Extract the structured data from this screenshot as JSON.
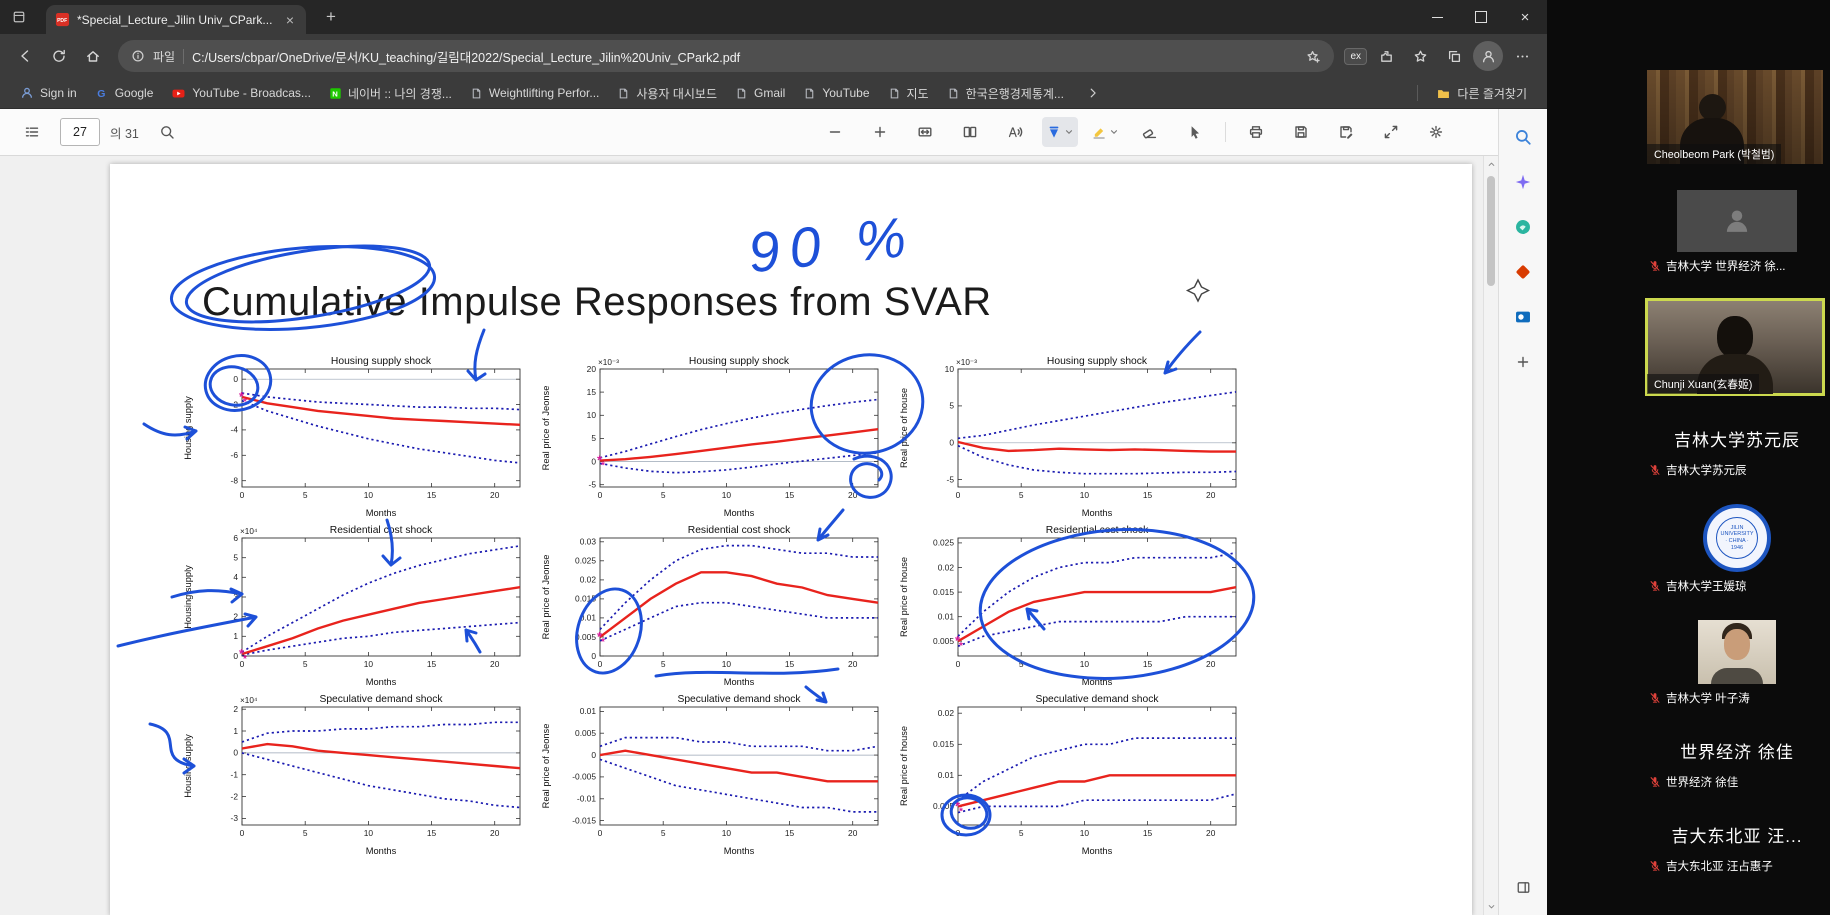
{
  "colors": {
    "pen_blue": "#1d50d8",
    "irf_red": "#e8231d",
    "band_blue": "#1a1ab0",
    "marker_magenta": "#d6199a",
    "active_speaker_border": "#ccd94e",
    "mic_muted_red": "#e0423b"
  },
  "browser": {
    "tab": {
      "title": "*Special_Lecture_Jilin Univ_CPark..."
    },
    "new_tab_button": "+",
    "window_close_glyph": "×",
    "tab_close_glyph": "×",
    "address": {
      "protocol_label": "파일",
      "url": "C:/Users/cbpar/OneDrive/문서/KU_teaching/길림대2022/Special_Lecture_Jilin%20Univ_CPark2.pdf",
      "extension_badge": "ex"
    },
    "bookmarks": [
      {
        "label": "Sign in",
        "icon": "signin"
      },
      {
        "label": "Google",
        "icon": "google"
      },
      {
        "label": "YouTube - Broadcas...",
        "icon": "youtube"
      },
      {
        "label": "네이버 :: 나의 경쟁...",
        "icon": "naver"
      },
      {
        "label": "Weightlifting Perfor...",
        "icon": "page"
      },
      {
        "label": "사용자 대시보드",
        "icon": "page"
      },
      {
        "label": "Gmail",
        "icon": "page"
      },
      {
        "label": "YouTube",
        "icon": "page"
      },
      {
        "label": "지도",
        "icon": "page"
      },
      {
        "label": "한국은행경제통계...",
        "icon": "page"
      }
    ],
    "other_favorites_label": "다른 즐겨찾기",
    "sidebar_icons": [
      "search",
      "copilot",
      "shopping",
      "office",
      "outlook",
      "add"
    ]
  },
  "pdf_toolbar": {
    "page_current": "27",
    "page_total_label": "의 31",
    "tools": [
      "zoom-out",
      "zoom-in",
      "fit-to-width",
      "page-view",
      "read-aloud",
      "draw",
      "highlight",
      "erase",
      "select",
      "print",
      "save",
      "save-as",
      "fullscreen",
      "settings"
    ]
  },
  "slide": {
    "title": "Cumulative Impulse Responses from SVAR",
    "annotation_percent": "90 %"
  },
  "chart_data": {
    "type": "line",
    "x": [
      0,
      2,
      4,
      6,
      8,
      10,
      12,
      14,
      16,
      18,
      20,
      22
    ],
    "xticks": [
      0,
      5,
      10,
      15,
      20
    ],
    "xlabel": "Months",
    "band_note": "red solid = cumulative impulse response, blue dotted = 90% confidence band",
    "subplots": [
      {
        "row": 1,
        "col": 1,
        "title": "Housing supply shock",
        "ylabel": "Housing supply",
        "multiplier": "",
        "ylim": [
          -8.5,
          0.8
        ],
        "yticks": [
          0,
          -2,
          -4,
          -6,
          -8
        ],
        "start_marker": true,
        "mid": [
          -1.4,
          -1.9,
          -2.2,
          -2.5,
          -2.7,
          -2.9,
          -3.1,
          -3.2,
          -3.3,
          -3.4,
          -3.5,
          -3.6
        ],
        "upper": [
          -1.1,
          -1.4,
          -1.6,
          -1.8,
          -1.9,
          -2.0,
          -2.1,
          -2.2,
          -2.2,
          -2.3,
          -2.3,
          -2.4
        ],
        "lower": [
          -1.7,
          -2.5,
          -3.1,
          -3.7,
          -4.2,
          -4.7,
          -5.1,
          -5.5,
          -5.8,
          -6.1,
          -6.4,
          -6.6
        ]
      },
      {
        "row": 1,
        "col": 2,
        "title": "Housing supply shock",
        "ylabel": "Real price of Jeonse",
        "multiplier": "×10⁻³",
        "ylim": [
          -5.5,
          20
        ],
        "yticks": [
          -5,
          0,
          5,
          10,
          15,
          20
        ],
        "start_marker": true,
        "mid": [
          0.2,
          0.5,
          1.0,
          1.6,
          2.3,
          3.0,
          3.7,
          4.3,
          5.0,
          5.6,
          6.3,
          7.0
        ],
        "upper": [
          0.8,
          2.2,
          3.8,
          5.4,
          6.9,
          8.2,
          9.4,
          10.4,
          11.3,
          12.1,
          12.8,
          13.4
        ],
        "lower": [
          -0.4,
          -1.4,
          -2.1,
          -2.4,
          -2.2,
          -1.8,
          -1.2,
          -0.5,
          0.1,
          0.7,
          1.3,
          1.9
        ]
      },
      {
        "row": 1,
        "col": 3,
        "title": "Housing supply shock",
        "ylabel": "Real price of house",
        "multiplier": "×10⁻³",
        "ylim": [
          -6,
          10
        ],
        "yticks": [
          -5,
          0,
          5,
          10
        ],
        "start_marker": false,
        "mid": [
          0.1,
          -0.7,
          -1.1,
          -1.0,
          -0.8,
          -0.9,
          -1.0,
          -0.9,
          -1.0,
          -1.1,
          -1.2,
          -1.2
        ],
        "upper": [
          0.6,
          1.0,
          1.7,
          2.4,
          3.0,
          3.6,
          4.2,
          4.8,
          5.4,
          5.9,
          6.4,
          6.9
        ],
        "lower": [
          -0.4,
          -2.0,
          -3.0,
          -3.7,
          -4.0,
          -4.2,
          -4.2,
          -4.2,
          -4.1,
          -4.0,
          -4.0,
          -3.9
        ]
      },
      {
        "row": 2,
        "col": 1,
        "title": "Residential cost shock",
        "ylabel": "Housing supply",
        "multiplier": "×10⁴",
        "ylim": [
          0,
          6
        ],
        "yticks": [
          0,
          1,
          2,
          3,
          4,
          5,
          6
        ],
        "start_marker": true,
        "mid": [
          0.1,
          0.5,
          0.9,
          1.4,
          1.8,
          2.1,
          2.4,
          2.7,
          2.9,
          3.1,
          3.3,
          3.5
        ],
        "upper": [
          0.2,
          1.0,
          1.7,
          2.4,
          3.1,
          3.7,
          4.2,
          4.6,
          4.9,
          5.2,
          5.4,
          5.6
        ],
        "lower": [
          0.05,
          0.3,
          0.5,
          0.7,
          0.9,
          1.0,
          1.2,
          1.3,
          1.4,
          1.5,
          1.6,
          1.7
        ]
      },
      {
        "row": 2,
        "col": 2,
        "title": "Residential cost shock",
        "ylabel": "Real price of Jeonse",
        "multiplier": "",
        "ylim": [
          0,
          0.031
        ],
        "yticks": [
          0,
          0.005,
          0.01,
          0.015,
          0.02,
          0.025,
          0.03
        ],
        "start_marker": true,
        "mid": [
          0.005,
          0.01,
          0.015,
          0.019,
          0.022,
          0.022,
          0.021,
          0.019,
          0.018,
          0.016,
          0.015,
          0.014
        ],
        "upper": [
          0.007,
          0.014,
          0.02,
          0.025,
          0.028,
          0.029,
          0.029,
          0.028,
          0.027,
          0.027,
          0.026,
          0.026
        ],
        "lower": [
          0.004,
          0.007,
          0.01,
          0.013,
          0.014,
          0.014,
          0.013,
          0.012,
          0.011,
          0.01,
          0.01,
          0.01
        ]
      },
      {
        "row": 2,
        "col": 3,
        "title": "Residential cost shock",
        "ylabel": "Real price of house",
        "multiplier": "",
        "ylim": [
          0.002,
          0.026
        ],
        "yticks": [
          0.005,
          0.01,
          0.015,
          0.02,
          0.025
        ],
        "start_marker": true,
        "mid": [
          0.005,
          0.008,
          0.011,
          0.013,
          0.014,
          0.015,
          0.015,
          0.015,
          0.015,
          0.015,
          0.015,
          0.016
        ],
        "upper": [
          0.006,
          0.011,
          0.015,
          0.018,
          0.02,
          0.021,
          0.021,
          0.022,
          0.022,
          0.022,
          0.022,
          0.023
        ],
        "lower": [
          0.004,
          0.006,
          0.007,
          0.008,
          0.009,
          0.009,
          0.009,
          0.009,
          0.009,
          0.01,
          0.01,
          0.01
        ]
      },
      {
        "row": 3,
        "col": 1,
        "title": "Speculative demand shock",
        "ylabel": "Housing supply",
        "multiplier": "×10⁴",
        "ylim": [
          -3.3,
          2.1
        ],
        "yticks": [
          2,
          1,
          0,
          -1,
          -2,
          -3
        ],
        "start_marker": false,
        "mid": [
          0.2,
          0.4,
          0.3,
          0.1,
          0.0,
          -0.1,
          -0.2,
          -0.3,
          -0.4,
          -0.5,
          -0.6,
          -0.7
        ],
        "upper": [
          0.5,
          0.9,
          1.0,
          1.0,
          1.1,
          1.1,
          1.2,
          1.2,
          1.3,
          1.3,
          1.4,
          1.4
        ],
        "lower": [
          0.0,
          -0.3,
          -0.6,
          -0.9,
          -1.2,
          -1.5,
          -1.7,
          -1.9,
          -2.1,
          -2.2,
          -2.4,
          -2.5
        ]
      },
      {
        "row": 3,
        "col": 2,
        "title": "Speculative demand shock",
        "ylabel": "Real price of Jeonse",
        "multiplier": "",
        "ylim": [
          -0.016,
          0.011
        ],
        "yticks": [
          0.01,
          0.005,
          0,
          -0.005,
          -0.01,
          -0.015
        ],
        "start_marker": false,
        "mid": [
          0.0,
          0.001,
          0.0,
          -0.001,
          -0.002,
          -0.003,
          -0.004,
          -0.004,
          -0.005,
          -0.006,
          -0.006,
          -0.006
        ],
        "upper": [
          0.002,
          0.004,
          0.004,
          0.004,
          0.003,
          0.003,
          0.002,
          0.002,
          0.002,
          0.001,
          0.001,
          0.002
        ],
        "lower": [
          -0.001,
          -0.003,
          -0.005,
          -0.007,
          -0.008,
          -0.009,
          -0.01,
          -0.011,
          -0.012,
          -0.012,
          -0.013,
          -0.013
        ]
      },
      {
        "row": 3,
        "col": 3,
        "title": "Speculative demand shock",
        "ylabel": "Real price of house",
        "multiplier": "",
        "ylim": [
          0.002,
          0.021
        ],
        "yticks": [
          0.005,
          0.01,
          0.015,
          0.02
        ],
        "start_marker": true,
        "mid": [
          0.005,
          0.006,
          0.007,
          0.008,
          0.009,
          0.009,
          0.01,
          0.01,
          0.01,
          0.01,
          0.01,
          0.01
        ],
        "upper": [
          0.006,
          0.009,
          0.011,
          0.013,
          0.014,
          0.015,
          0.015,
          0.016,
          0.016,
          0.016,
          0.016,
          0.016
        ],
        "lower": [
          0.004,
          0.005,
          0.005,
          0.005,
          0.005,
          0.006,
          0.006,
          0.006,
          0.006,
          0.006,
          0.006,
          0.007
        ]
      }
    ]
  },
  "zoom_panel": {
    "participants": [
      {
        "kind": "video",
        "scene": "scene-book",
        "name_label": "Cheolbeom Park (박철범)",
        "muted": false,
        "active": false
      },
      {
        "kind": "avatar",
        "name_label": "吉林大学 世界经济 徐...",
        "muted": true,
        "active": false
      },
      {
        "kind": "video",
        "scene": "scene-room",
        "name_label": "Chunji Xuan(玄春姬)",
        "muted": false,
        "active": true
      },
      {
        "kind": "text",
        "display_text": "吉林大学苏元辰",
        "name_label": "吉林大学苏元辰",
        "muted": true,
        "active": false
      },
      {
        "kind": "logo",
        "logo_text": "JILIN UNIVERSITY · CHINA · 1946",
        "name_label": "吉林大学王媛琼",
        "muted": true,
        "active": false
      },
      {
        "kind": "photo",
        "name_label": "吉林大学 叶子涛",
        "muted": true,
        "active": false
      },
      {
        "kind": "text",
        "display_text": "世界经济 徐佳",
        "name_label": "世界经济 徐佳",
        "muted": true,
        "active": false
      },
      {
        "kind": "text",
        "display_text": "吉大东北亚 汪...",
        "name_label": "吉大东北亚 汪占惠子",
        "muted": true,
        "active": false
      }
    ]
  }
}
